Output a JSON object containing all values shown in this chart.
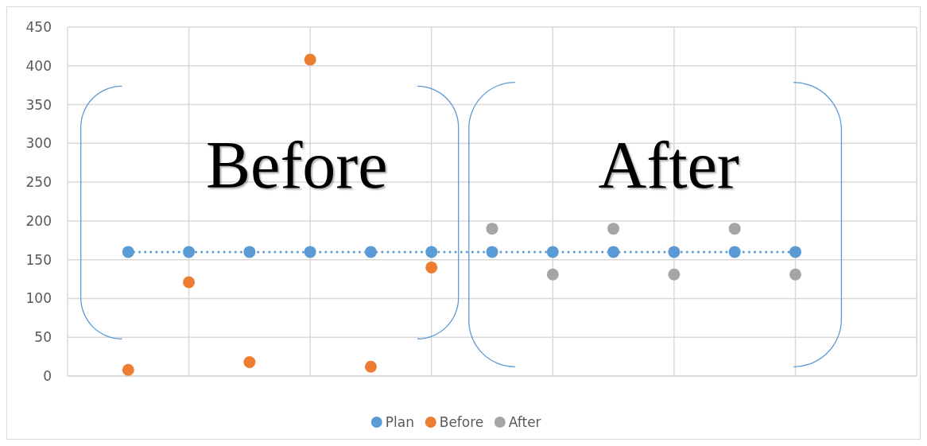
{
  "chart_data": {
    "type": "scatter",
    "annotations": [
      "Before",
      "After"
    ],
    "categories": [
      null,
      null,
      null,
      null,
      null,
      null,
      null,
      null,
      null,
      null,
      null,
      null
    ],
    "ylim": [
      0,
      450
    ],
    "yticks": [
      0,
      50,
      100,
      150,
      200,
      250,
      300,
      350,
      400,
      450
    ],
    "tick_labels": "y",
    "grid": true,
    "legend": "bottom",
    "marker": "circle",
    "series": [
      {
        "name": "Plan",
        "type": "line",
        "line_style": "dotted",
        "color": "#5b9bd5",
        "values": [
          160,
          160,
          160,
          160,
          160,
          160,
          160,
          160,
          160,
          160,
          160,
          160
        ]
      },
      {
        "name": "Before",
        "color": "#ed7d31",
        "values": [
          8,
          121,
          18,
          408,
          12,
          140,
          null,
          null,
          null,
          null,
          null,
          null
        ]
      },
      {
        "name": "After",
        "color": "#a5a5a5",
        "values": [
          null,
          null,
          null,
          null,
          null,
          null,
          190,
          131,
          190,
          131,
          190,
          131
        ]
      }
    ]
  }
}
